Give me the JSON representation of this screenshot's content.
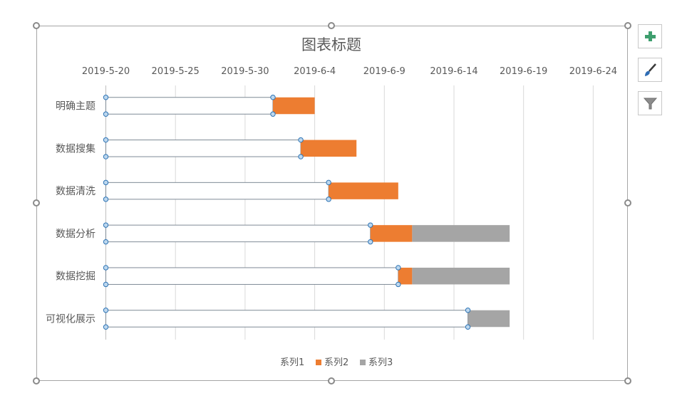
{
  "chart_data": {
    "type": "bar",
    "orientation": "horizontal",
    "stacked": true,
    "title": "图表标题",
    "xaxis_position": "top",
    "xlim": [
      "2019-5-20",
      "2019-6-27"
    ],
    "x_ticks": [
      "2019-5-20",
      "2019-5-25",
      "2019-5-30",
      "2019-6-4",
      "2019-6-9",
      "2019-6-14",
      "2019-6-19",
      "2019-6-24"
    ],
    "grid": true,
    "categories": [
      "明确主题",
      "数据搜集",
      "数据清洗",
      "数据分析",
      "数据挖掘",
      "可视化展示"
    ],
    "series": [
      {
        "name": "系列1",
        "color": "#ffffff",
        "values": [
          "2019-6-1",
          "2019-6-3",
          "2019-6-5",
          "2019-6-8",
          "2019-6-10",
          "2019-6-15"
        ]
      },
      {
        "name": "系列2",
        "color": "#ed7d31",
        "values": [
          3,
          4,
          5,
          3,
          1,
          0
        ]
      },
      {
        "name": "系列3",
        "color": "#a5a5a5",
        "values": [
          0,
          0,
          0,
          7,
          7,
          3
        ]
      }
    ],
    "legend_position": "bottom"
  },
  "ui": {
    "side_buttons": [
      {
        "name": "chart-elements-button",
        "icon": "plus-icon"
      },
      {
        "name": "chart-styles-button",
        "icon": "brush-icon"
      },
      {
        "name": "chart-filters-button",
        "icon": "funnel-icon"
      }
    ],
    "colors": {
      "accent_plus": "#3e9e6e",
      "selection": "#5b9bd5"
    }
  }
}
